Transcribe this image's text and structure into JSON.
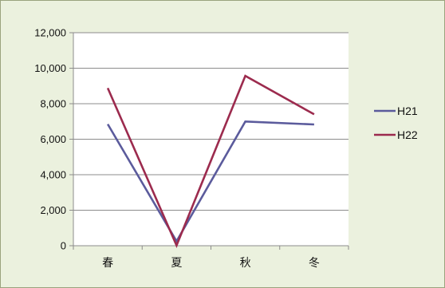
{
  "chart_data": {
    "type": "line",
    "categories": [
      "春",
      "夏",
      "秋",
      "冬"
    ],
    "series": [
      {
        "name": "H21",
        "values": [
          6850,
          250,
          7000,
          6830
        ],
        "color": "#5b5b9c"
      },
      {
        "name": "H22",
        "values": [
          8880,
          20,
          9570,
          7400
        ],
        "color": "#9c2b4e"
      }
    ],
    "ylim": [
      0,
      12000
    ],
    "yticks": [
      0,
      2000,
      4000,
      6000,
      8000,
      10000,
      12000
    ],
    "ytick_labels": [
      "0",
      "2,000",
      "4,000",
      "6,000",
      "8,000",
      "10,000",
      "12,000"
    ],
    "grid": "horizontal",
    "legend_position": "right",
    "colors": {
      "chart_background": "#ebf1de",
      "plot_background": "#ffffff",
      "grid": "#8c8c8c",
      "frame_border": "#9aa37e"
    }
  }
}
